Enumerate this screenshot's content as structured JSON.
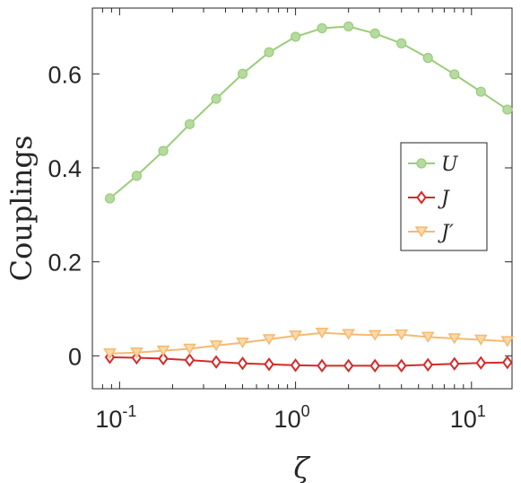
{
  "chart_data": {
    "type": "line",
    "xscale": "log",
    "xlabel": "ζ",
    "ylabel": "Couplings",
    "xlim": [
      0.07,
      17
    ],
    "ylim": [
      -0.07,
      0.74
    ],
    "grid": false,
    "legend_position": "right",
    "x_ticks": [
      {
        "base": "10",
        "exp": "-1",
        "value": 0.1
      },
      {
        "base": "10",
        "exp": "0",
        "value": 1
      },
      {
        "base": "10",
        "exp": "1",
        "value": 10
      }
    ],
    "y_ticks": [
      {
        "label": "0",
        "value": 0
      },
      {
        "label": "0.2",
        "value": 0.2
      },
      {
        "label": "0.4",
        "value": 0.4
      },
      {
        "label": "0.6",
        "value": 0.6
      }
    ],
    "x": [
      0.088,
      0.125,
      0.177,
      0.25,
      0.354,
      0.5,
      0.707,
      1.0,
      1.414,
      2.0,
      2.828,
      4.0,
      5.657,
      8.0,
      11.31,
      16.0
    ],
    "series": [
      {
        "name": "U",
        "marker": "circle",
        "color": "#9acd7a",
        "fill": "#b5dba0",
        "values": [
          0.335,
          0.383,
          0.436,
          0.493,
          0.547,
          0.6,
          0.646,
          0.679,
          0.697,
          0.701,
          0.686,
          0.665,
          0.634,
          0.599,
          0.562,
          0.524
        ]
      },
      {
        "name": "J",
        "marker": "diamond",
        "color": "#d42a2a",
        "fill": "#ffffff",
        "values": [
          -0.003,
          -0.004,
          -0.006,
          -0.009,
          -0.013,
          -0.016,
          -0.018,
          -0.02,
          -0.021,
          -0.021,
          -0.021,
          -0.021,
          -0.019,
          -0.017,
          -0.015,
          -0.014
        ]
      },
      {
        "name": "J′",
        "marker": "triangle-down",
        "color": "#f5b971",
        "fill": "#fbd9a8",
        "values": [
          0.005,
          0.007,
          0.011,
          0.015,
          0.022,
          0.028,
          0.035,
          0.043,
          0.049,
          0.046,
          0.044,
          0.045,
          0.04,
          0.037,
          0.034,
          0.031
        ]
      }
    ]
  }
}
